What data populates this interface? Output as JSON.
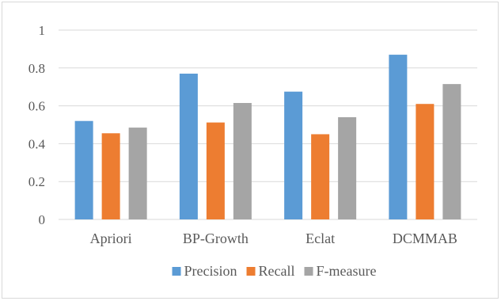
{
  "chart_data": {
    "type": "bar",
    "categories": [
      "Apriori",
      "BP-Growth",
      "Eclat",
      "DCMMAB"
    ],
    "series": [
      {
        "name": "Precision",
        "color": "#5b9bd5",
        "values": [
          0.52,
          0.77,
          0.675,
          0.87
        ]
      },
      {
        "name": "Recall",
        "color": "#ed7d31",
        "values": [
          0.455,
          0.512,
          0.45,
          0.61
        ]
      },
      {
        "name": "F-measure",
        "color": "#a5a5a5",
        "values": [
          0.485,
          0.615,
          0.54,
          0.715
        ]
      }
    ],
    "yticks": [
      "0",
      "0.2",
      "0.4",
      "0.6",
      "0.8",
      "1"
    ],
    "ylim": [
      0,
      1
    ],
    "grid": true,
    "legend_position": "bottom",
    "title": "",
    "xlabel": "",
    "ylabel": ""
  }
}
